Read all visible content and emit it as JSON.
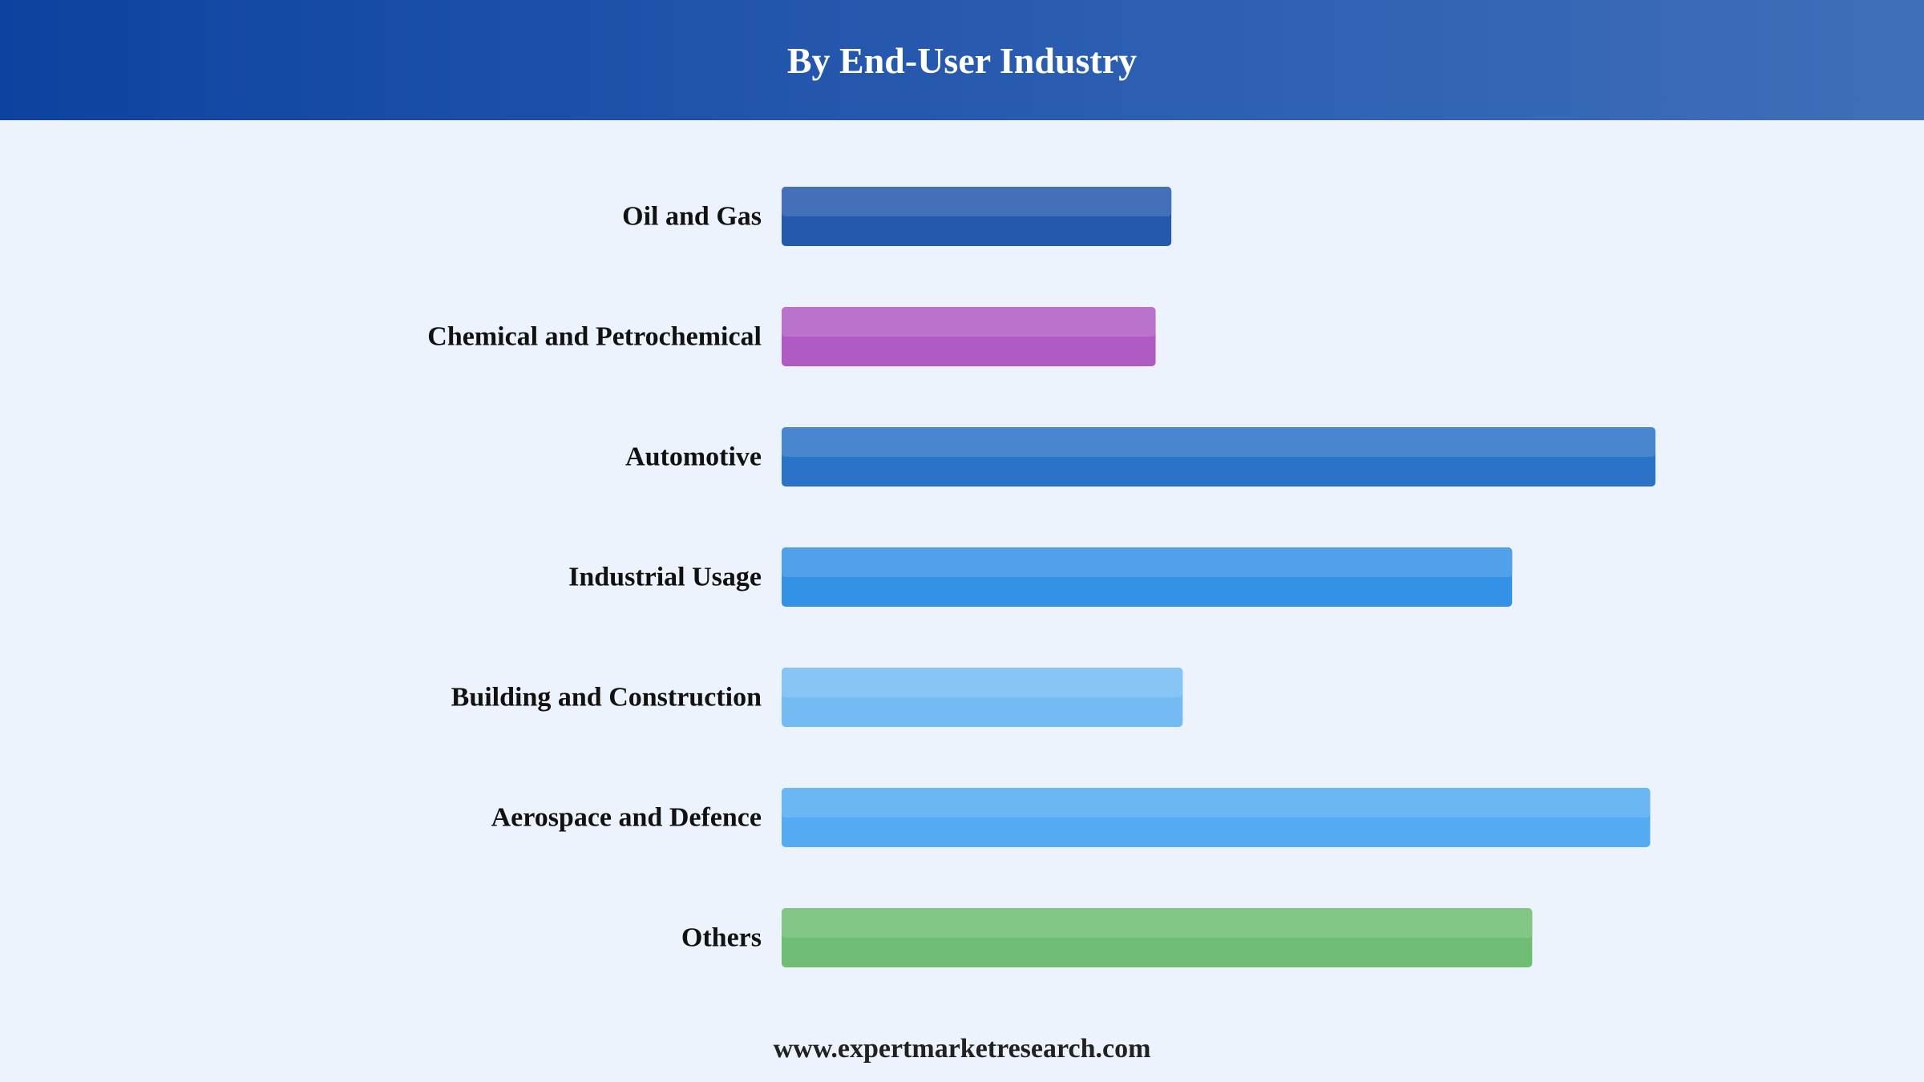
{
  "header": {
    "title": "By End-User Industry"
  },
  "footer": {
    "source": "www.expertmarketresearch.com"
  },
  "chart_data": {
    "type": "bar",
    "orientation": "horizontal",
    "title": "By End-User Industry",
    "categories": [
      "Oil and Gas",
      "Chemical and Petrochemical",
      "Automotive",
      "Industrial Usage",
      "Building and Construction",
      "Aerospace and Defence",
      "Others"
    ],
    "values": [
      44.6,
      42.8,
      100,
      83.6,
      45.9,
      99.4,
      85.9
    ],
    "colors": [
      "#2459ad",
      "#b05bc4",
      "#2a73c8",
      "#3391e6",
      "#74bbf4",
      "#53abf2",
      "#6fbe74"
    ],
    "xlim": [
      0,
      100
    ],
    "grid": false,
    "legend": "none",
    "value_labels": false
  }
}
